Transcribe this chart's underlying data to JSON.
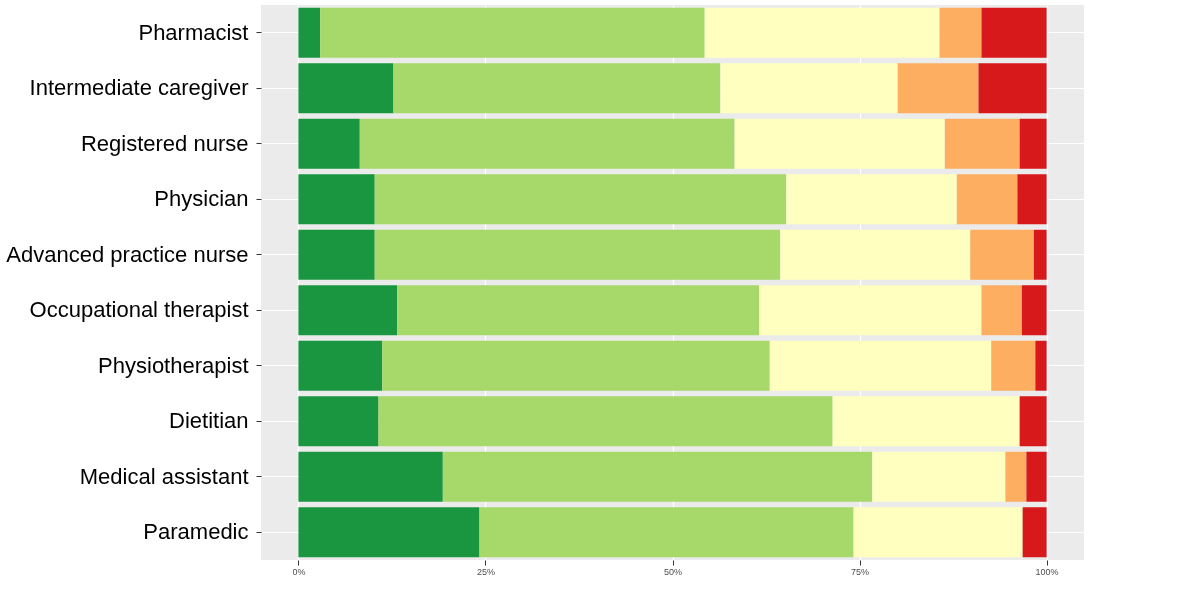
{
  "chart_data": {
    "type": "bar",
    "orientation": "horizontal",
    "stacked": true,
    "grid": true,
    "categories": [
      "Pharmacist",
      "Intermediate caregiver",
      "Registered nurse",
      "Physician",
      "Advanced practice nurse",
      "Occupational therapist",
      "Physiotherapist",
      "Dietitian",
      "Medical assistant",
      "Paramedic"
    ],
    "series": [
      {
        "color": "#1a9641",
        "values": [
          2.9,
          12.7,
          8.2,
          10.2,
          10.2,
          13.2,
          11.2,
          10.7,
          19.3,
          24.2
        ]
      },
      {
        "color": "#a6d96a",
        "values": [
          51.4,
          43.7,
          50.1,
          55.0,
          54.2,
          48.4,
          51.8,
          60.7,
          57.4,
          50.0
        ]
      },
      {
        "color": "#ffffbf",
        "values": [
          31.4,
          23.7,
          28.1,
          22.8,
          25.4,
          29.7,
          29.6,
          25.0,
          17.8,
          22.6
        ]
      },
      {
        "color": "#fdae61",
        "values": [
          5.6,
          10.8,
          10.0,
          8.1,
          8.5,
          5.4,
          5.9,
          0,
          2.8,
          0
        ]
      },
      {
        "color": "#d7191c",
        "values": [
          8.7,
          9.1,
          3.6,
          3.9,
          1.7,
          3.3,
          1.5,
          3.6,
          2.7,
          3.2
        ]
      }
    ],
    "xlim": [
      -5,
      105
    ],
    "xticks": [
      {
        "value": 0,
        "label": "0%"
      },
      {
        "value": 25,
        "label": "25%"
      },
      {
        "value": 50,
        "label": "50%"
      },
      {
        "value": 75,
        "label": "75%"
      },
      {
        "value": 100,
        "label": "100%"
      }
    ]
  }
}
